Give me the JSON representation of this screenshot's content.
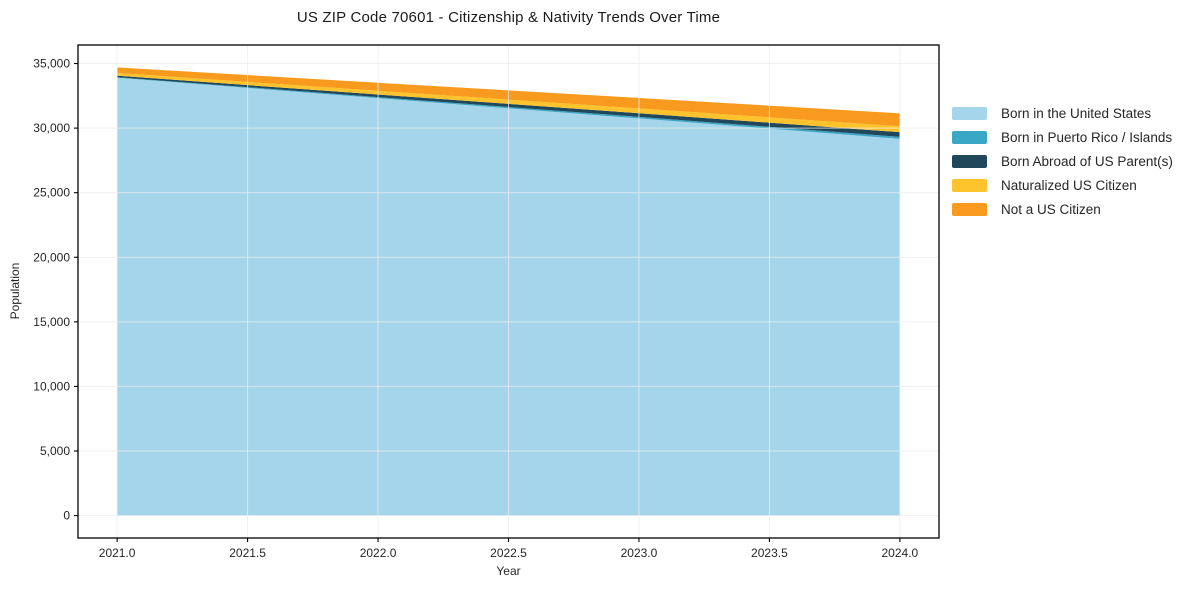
{
  "title": "US ZIP Code 70601 - Citizenship & Nativity Trends Over Time",
  "chart_data": {
    "type": "area",
    "stacked": true,
    "title": "US ZIP Code 70601 - Citizenship & Nativity Trends Over Time",
    "xlabel": "Year",
    "ylabel": "Population",
    "x": [
      2021,
      2022,
      2023,
      2024
    ],
    "series": [
      {
        "name": "Born in the United States",
        "color": "#a5d5ea",
        "values": [
          33900,
          32320,
          30750,
          29170
        ]
      },
      {
        "name": "Born in Puerto Rico / Islands",
        "color": "#3aa8c4",
        "values": [
          40,
          80,
          120,
          155
        ]
      },
      {
        "name": "Born Abroad of US Parent(s)",
        "color": "#21475a",
        "values": [
          120,
          200,
          280,
          360
        ]
      },
      {
        "name": "Naturalized US Citizen",
        "color": "#fdc32d",
        "values": [
          210,
          290,
          375,
          460
        ]
      },
      {
        "name": "Not a US Citizen",
        "color": "#f79a1e",
        "values": [
          430,
          620,
          810,
          1000
        ]
      }
    ],
    "xticks": [
      2021.0,
      2021.5,
      2022.0,
      2022.5,
      2023.0,
      2023.5,
      2024.0
    ],
    "xtick_labels": [
      "2021.0",
      "2021.5",
      "2022.0",
      "2022.5",
      "2023.0",
      "2023.5",
      "2024.0"
    ],
    "yticks": [
      0,
      5000,
      10000,
      15000,
      20000,
      25000,
      30000,
      35000
    ],
    "ytick_labels": [
      "0",
      "5,000",
      "10,000",
      "15,000",
      "20,000",
      "25,000",
      "30,000",
      "35,000"
    ],
    "xlim": [
      2020.85,
      2024.15
    ],
    "ylim": [
      -1735,
      36435
    ],
    "grid": true,
    "grid_color": "#ececec",
    "frame_color": "#000000",
    "tick_label_color": "#262626",
    "legend_position": "right"
  },
  "legend": {
    "items": [
      {
        "label": "Born in the United States"
      },
      {
        "label": "Born in Puerto Rico / Islands"
      },
      {
        "label": "Born Abroad of US Parent(s)"
      },
      {
        "label": "Naturalized US Citizen"
      },
      {
        "label": "Not a US Citizen"
      }
    ]
  }
}
